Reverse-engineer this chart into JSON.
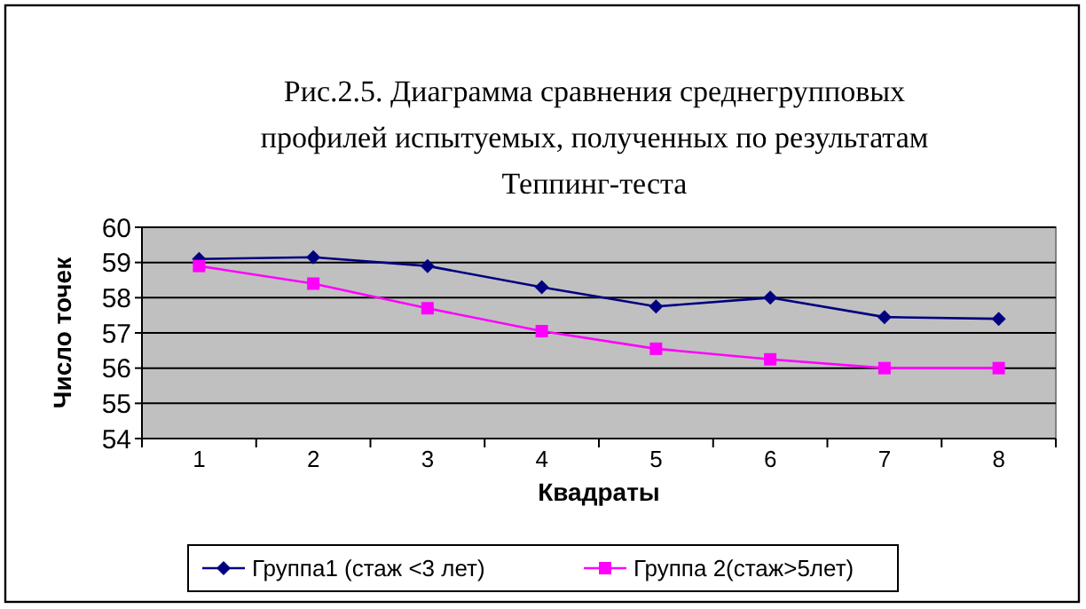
{
  "chart_data": {
    "type": "line",
    "title": "Рис.2.5.    Диаграмма сравнения среднегрупповых профилей испытуемых, полученных по результатам Теппинг-теста",
    "xlabel": "Квадраты",
    "ylabel": "Число точек",
    "categories": [
      "1",
      "2",
      "3",
      "4",
      "5",
      "6",
      "7",
      "8"
    ],
    "series": [
      {
        "name": "Группа1 (стаж <3 лет)",
        "color": "#000080",
        "marker": "diamond",
        "values": [
          59.1,
          59.15,
          58.9,
          58.3,
          57.75,
          58.0,
          57.45,
          57.4
        ]
      },
      {
        "name": "Группа 2(стаж>5лет)",
        "color": "#ff00ff",
        "marker": "square",
        "values": [
          58.9,
          58.4,
          57.7,
          57.05,
          56.55,
          56.25,
          56.0,
          56.0
        ]
      }
    ],
    "ylim": [
      54,
      60
    ],
    "yticks": [
      54,
      55,
      56,
      57,
      58,
      59,
      60
    ],
    "grid": "y",
    "legend": "bottom"
  }
}
